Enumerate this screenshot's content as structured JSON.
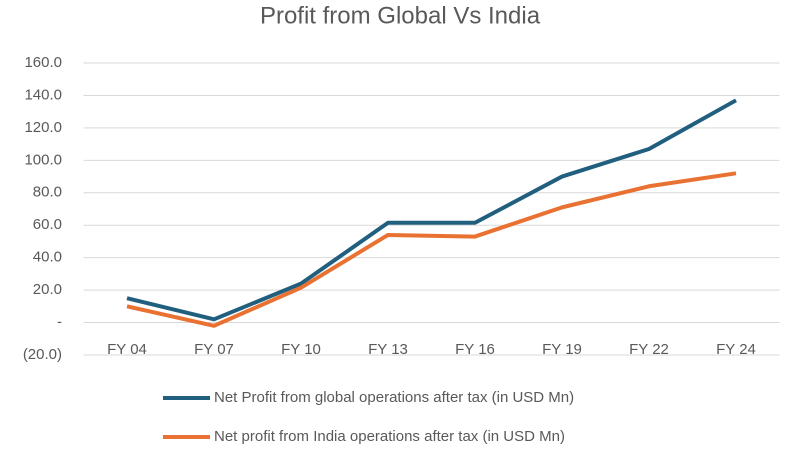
{
  "chart_data": {
    "type": "line",
    "title": "Profit from Global Vs India",
    "categories": [
      "FY 04",
      "FY 07",
      "FY 10",
      "FY 13",
      "FY 16",
      "FY 19",
      "FY 22",
      "FY 24"
    ],
    "series": [
      {
        "name": "Net Profit from global operations after tax (in USD Mn)",
        "color": "#215f7e",
        "values": [
          15,
          2,
          24,
          61.5,
          61.5,
          90,
          107,
          137
        ]
      },
      {
        "name": "Net profit from India operations after tax (in USD Mn)",
        "color": "#e97132",
        "values": [
          10,
          -2,
          21.5,
          54,
          53,
          71,
          84,
          92
        ]
      }
    ],
    "ylim": [
      -20,
      160
    ],
    "yticks": [
      {
        "value": -20,
        "label": "(20.0)"
      },
      {
        "value": 0,
        "label": "-"
      },
      {
        "value": 20,
        "label": "20.0"
      },
      {
        "value": 40,
        "label": "40.0"
      },
      {
        "value": 60,
        "label": "60.0"
      },
      {
        "value": 80,
        "label": "80.0"
      },
      {
        "value": 100,
        "label": "100.0"
      },
      {
        "value": 120,
        "label": "120.0"
      },
      {
        "value": 140,
        "label": "140.0"
      },
      {
        "value": 160,
        "label": "160.0"
      }
    ],
    "grid": true
  }
}
